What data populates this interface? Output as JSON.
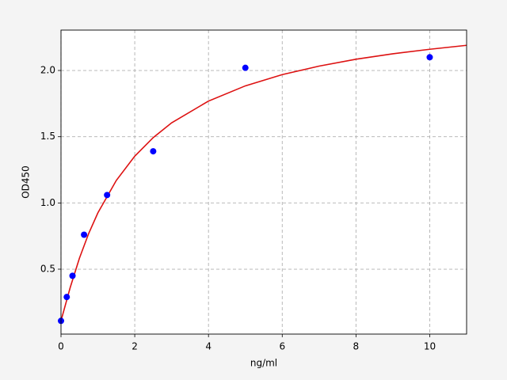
{
  "chart_data": {
    "type": "scatter",
    "xlabel": "ng/ml",
    "ylabel": "OD450",
    "x": [
      0,
      0.156,
      0.312,
      0.625,
      1.25,
      2.5,
      5,
      10
    ],
    "values": [
      0.11,
      0.29,
      0.45,
      0.76,
      1.06,
      1.39,
      2.02,
      2.1
    ],
    "color": "#0000ff",
    "fit": {
      "color": "#dd1111",
      "x": [
        0,
        0.25,
        0.5,
        0.75,
        1,
        1.5,
        2,
        2.5,
        3,
        4,
        5,
        6,
        7,
        8,
        9,
        10,
        11
      ],
      "values": [
        0.11,
        0.362,
        0.583,
        0.769,
        0.925,
        1.17,
        1.353,
        1.493,
        1.605,
        1.769,
        1.884,
        1.969,
        2.033,
        2.085,
        2.126,
        2.16,
        2.19
      ]
    },
    "xlim": [
      0,
      11
    ],
    "ylim": [
      0.01,
      2.305
    ],
    "xticks": [
      0,
      2,
      4,
      6,
      8,
      10
    ],
    "yticks": [
      0.5,
      {
        "value": 1,
        "label": "1.0"
      },
      1.5,
      {
        "value": 2,
        "label": "2.0"
      }
    ],
    "grid": true
  }
}
